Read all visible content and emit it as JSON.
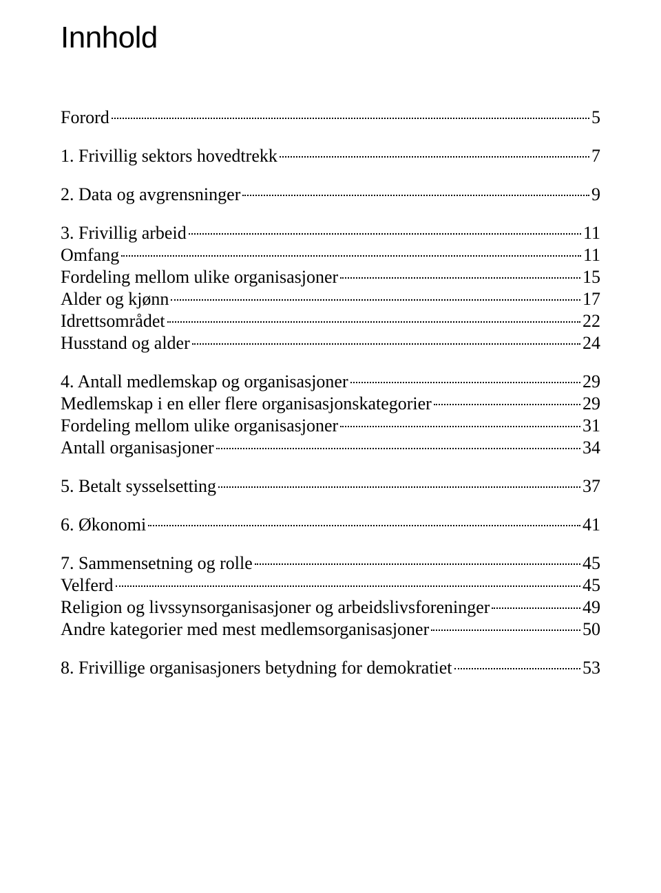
{
  "document": {
    "title": "Innhold",
    "title_fontsize": 44,
    "body_fontsize": 26,
    "title_font": "Arial",
    "body_font": "Times New Roman",
    "text_color": "#000000",
    "background_color": "#ffffff",
    "entries": [
      {
        "label": "Forord",
        "page": "5",
        "level": 0,
        "spaced": false
      },
      {
        "label": "1. Frivillig sektors hovedtrekk",
        "page": "7",
        "level": 0,
        "spaced": true
      },
      {
        "label": "2. Data og avgrensninger",
        "page": "9",
        "level": 0,
        "spaced": true
      },
      {
        "label": "3. Frivillig arbeid",
        "page": "11",
        "level": 0,
        "spaced": true
      },
      {
        "label": "Omfang",
        "page": "11",
        "level": 1,
        "spaced": false
      },
      {
        "label": "Fordeling mellom ulike organisasjoner",
        "page": "15",
        "level": 1,
        "spaced": false
      },
      {
        "label": "Alder og kjønn",
        "page": "17",
        "level": 1,
        "spaced": false
      },
      {
        "label": "Idrettsområdet",
        "page": "22",
        "level": 1,
        "spaced": false
      },
      {
        "label": "Husstand og alder",
        "page": "24",
        "level": 1,
        "spaced": false
      },
      {
        "label": "4. Antall medlemskap og organisasjoner",
        "page": "29",
        "level": 0,
        "spaced": true
      },
      {
        "label": "Medlemskap i en eller flere organisasjonskategorier",
        "page": "29",
        "level": 1,
        "spaced": false
      },
      {
        "label": "Fordeling mellom ulike organisasjoner",
        "page": "31",
        "level": 1,
        "spaced": false
      },
      {
        "label": "Antall organisasjoner",
        "page": "34",
        "level": 1,
        "spaced": false
      },
      {
        "label": "5. Betalt sysselsetting",
        "page": "37",
        "level": 0,
        "spaced": true
      },
      {
        "label": "6. Økonomi",
        "page": "41",
        "level": 0,
        "spaced": true
      },
      {
        "label": "7. Sammensetning og rolle",
        "page": "45",
        "level": 0,
        "spaced": true
      },
      {
        "label": "Velferd",
        "page": "45",
        "level": 1,
        "spaced": false
      },
      {
        "label": "Religion og livssynsorganisasjoner og arbeidslivsforeninger",
        "page": "49",
        "level": 1,
        "spaced": false
      },
      {
        "label": "Andre kategorier med mest medlemsorganisasjoner",
        "page": "50",
        "level": 1,
        "spaced": false
      },
      {
        "label": "8. Frivillige organisasjoners betydning for demokratiet",
        "page": "53",
        "level": 0,
        "spaced": true
      }
    ]
  }
}
